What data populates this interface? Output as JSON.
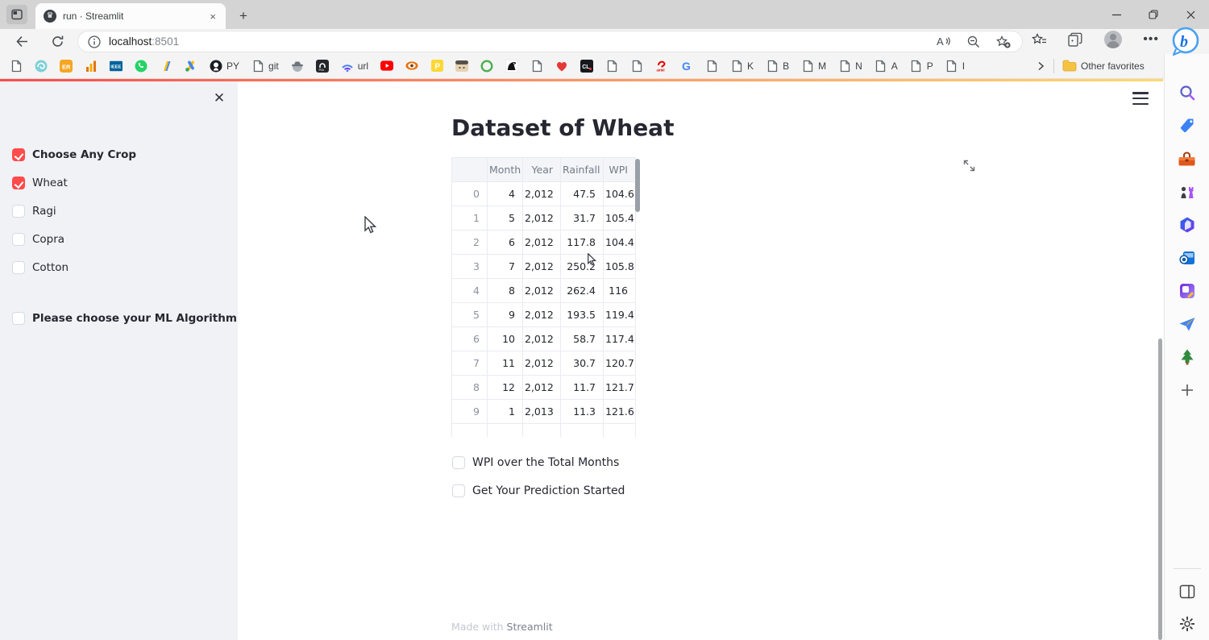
{
  "window": {
    "controls": [
      "minimize",
      "maximize",
      "close"
    ]
  },
  "browser": {
    "tab_title": "run · Streamlit",
    "tab_close_icon": "×",
    "url_host": "localhost",
    "url_port": ":8501",
    "other_favorites_label": "Other favorites",
    "bookmarks": [
      {
        "icon": "page-icon"
      },
      {
        "icon": "teal-swirl-icon"
      },
      {
        "icon": "orange-badge-icon"
      },
      {
        "icon": "bar-chart-icon"
      },
      {
        "icon": "ieee-icon",
        "text": "IEEE"
      },
      {
        "icon": "whatsapp-icon"
      },
      {
        "icon": "double-slash-icon"
      },
      {
        "icon": "google-ads-icon"
      },
      {
        "icon": "github-icon",
        "label": "PY"
      },
      {
        "icon": "page-icon",
        "label": "git"
      },
      {
        "icon": "spy-hat-icon"
      },
      {
        "icon": "pia-icon"
      },
      {
        "icon": "wifi-arc-icon",
        "label": "url"
      },
      {
        "icon": "youtube-icon"
      },
      {
        "icon": "eye-icon"
      },
      {
        "icon": "p-badge-icon"
      },
      {
        "icon": "tan-badge-icon"
      },
      {
        "icon": "green-ring-icon"
      },
      {
        "icon": "eagle-icon"
      },
      {
        "icon": "page-icon"
      },
      {
        "icon": "heart-icon"
      },
      {
        "icon": "cl-badge-icon"
      },
      {
        "icon": "page-icon"
      },
      {
        "icon": "page-icon"
      },
      {
        "icon": "airtel-icon"
      },
      {
        "icon": "google-icon"
      },
      {
        "icon": "page-icon"
      },
      {
        "icon": "page-icon",
        "label": "K"
      },
      {
        "icon": "page-icon",
        "label": "B"
      },
      {
        "icon": "page-icon",
        "label": "M"
      },
      {
        "icon": "page-icon",
        "label": "N"
      },
      {
        "icon": "page-icon",
        "label": "A"
      },
      {
        "icon": "page-icon",
        "label": "P"
      },
      {
        "icon": "page-icon",
        "label": "I"
      }
    ]
  },
  "edge_sidebar": {
    "top_icons": [
      "search-icon",
      "shopping-tag-icon",
      "toolbox-icon",
      "games-icon",
      "microsoft-365-icon",
      "outlook-icon",
      "designer-icon",
      "drop-icon",
      "tree-icon",
      "add-icon"
    ],
    "bottom_icons": [
      "split-screen-icon",
      "settings-gear-icon"
    ]
  },
  "app": {
    "sidebar": {
      "close_icon": "✕",
      "checkboxes": [
        {
          "label": "Choose Any Crop",
          "checked": true,
          "bold": true,
          "gap_before": false
        },
        {
          "label": "Wheat",
          "checked": true,
          "bold": false,
          "gap_before": false
        },
        {
          "label": "Ragi",
          "checked": false,
          "bold": false,
          "gap_before": false
        },
        {
          "label": "Copra",
          "checked": false,
          "bold": false,
          "gap_before": false
        },
        {
          "label": "Cotton",
          "checked": false,
          "bold": false,
          "gap_before": false
        },
        {
          "label": "Please choose your ML Algorithm",
          "checked": false,
          "bold": true,
          "gap_before": true
        }
      ]
    },
    "main": {
      "title": "Dataset of Wheat",
      "table": {
        "headers": [
          "",
          "Month",
          "Year",
          "Rainfall",
          "WPI"
        ],
        "rows": [
          [
            "0",
            "4",
            "2,012",
            "47.5",
            "104.6"
          ],
          [
            "1",
            "5",
            "2,012",
            "31.7",
            "105.4"
          ],
          [
            "2",
            "6",
            "2,012",
            "117.8",
            "104.4"
          ],
          [
            "3",
            "7",
            "2,012",
            "250.2",
            "105.8"
          ],
          [
            "4",
            "8",
            "2,012",
            "262.4",
            "116"
          ],
          [
            "5",
            "9",
            "2,012",
            "193.5",
            "119.4"
          ],
          [
            "6",
            "10",
            "2,012",
            "58.7",
            "117.4"
          ],
          [
            "7",
            "11",
            "2,012",
            "30.7",
            "120.7"
          ],
          [
            "8",
            "12",
            "2,012",
            "11.7",
            "121.7"
          ],
          [
            "9",
            "1",
            "2,013",
            "11.3",
            "121.6"
          ]
        ]
      },
      "checkboxes": [
        {
          "label": "WPI over the Total Months",
          "checked": false
        },
        {
          "label": "Get Your Prediction Started",
          "checked": false
        }
      ],
      "footer": {
        "prefix": "Made with ",
        "link": "Streamlit"
      }
    }
  },
  "colors": {
    "accent": "#ff4b4b",
    "sidebar_bg": "#f0f2f6",
    "title_text": "#262730",
    "decoration_start": "#ff4b4b",
    "decoration_end": "#ffd970"
  }
}
